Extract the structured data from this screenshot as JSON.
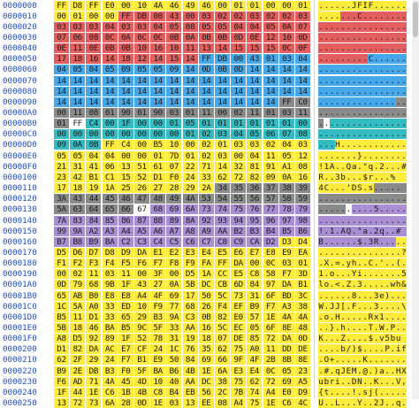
{
  "viewer": {
    "colors": {
      "Y": "#ffeb3b",
      "R": "#e35e5e",
      "B": "#46a8e8",
      "G": "#8a8a8a",
      "C": "#35bcc3",
      "P": "#a98ed4",
      "W": "#ffffff",
      "D": "#707070",
      "K": "#2a2a2a"
    },
    "rows": [
      {
        "offset": "0000000",
        "hex": "FF D8 FF E0 00 10 4A 46 49 46 00 01 01 00 00 01",
        "ascii": "......JFIF......",
        "hexFill": "YYYYYYYYYYYYYYYY",
        "ascFill": "YYYYYYYYYYYYYYYY"
      },
      {
        "offset": "0000010",
        "hex": "00 01 00 00 FF DB 00 43 00 03 02 02 03 02 02 03",
        "ascii": ".......C........",
        "hexFill": "YYYYRRRRRRRRRRRR",
        "ascFill": "YYYYRRRRRRRRRRRR"
      },
      {
        "offset": "0000020",
        "hex": "03 03 03 04 03 03 04 05 08 05 05 04 04 05 0A 07",
        "ascii": "................",
        "hexFill": "RRRRRRRRRRRRRRRR",
        "ascFill": "RRRRRRRRRRRRRRRR"
      },
      {
        "offset": "0000030",
        "hex": "07 06 08 0C 0A 0C 0C 0B 0A 0B 0B 0D 0E 12 10 0D",
        "ascii": "................",
        "hexFill": "RRRRRRRRRRRRRRRR",
        "ascFill": "RRRRRRRRRRRRRRRR"
      },
      {
        "offset": "0000040",
        "hex": "0E 11 0E 0B 0B 10 16 10 11 13 14 15 15 15 0C 0F",
        "ascii": "................",
        "hexFill": "RRRRRRRRRRRRRRRR",
        "ascFill": "RRRRRRRRRRRRRRRR"
      },
      {
        "offset": "0000050",
        "hex": "17 18 16 14 18 12 14 15 14 FF DB 00 43 01 03 04",
        "ascii": ".........C......",
        "hexFill": "RRRRRRRRRBBBBBBB",
        "ascFill": "RRRRRRRRRBBBBBBB"
      },
      {
        "offset": "0000060",
        "hex": "04 05 04 05 09 05 05 09 14 0D 0B 0D 14 14 14 14",
        "ascii": "................",
        "hexFill": "BBBBBBBBBBBBBBBB",
        "ascFill": "BBBBBBBBBBBBBBBB"
      },
      {
        "offset": "0000070",
        "hex": "14 14 14 14 14 14 14 14 14 14 14 14 14 14 14 14",
        "ascii": "................",
        "hexFill": "BBBBBBBBBBBBBBBB",
        "ascFill": "BBBBBBBBBBBBBBBB"
      },
      {
        "offset": "0000080",
        "hex": "14 14 14 14 14 14 14 14 14 14 14 14 14 14 14 14",
        "ascii": "................",
        "hexFill": "BBBBBBBBBBBBBBBB",
        "ascFill": "BBBBBBBBBBBBBBBB"
      },
      {
        "offset": "0000090",
        "hex": "14 14 14 14 14 14 14 14 14 14 14 14 14 14 FF C0",
        "ascii": "................",
        "hexFill": "BBBBBBBBBBBBBBGG",
        "ascFill": "BBBBBBBBBBBBBBGG"
      },
      {
        "offset": "00000A0",
        "hex": "00 11 08 01 90 01 90 03 01 11 00 02 11 01 03 11",
        "ascii": "................",
        "hexFill": "GGGGGGGGGGGGGGGG",
        "ascFill": "GGGGGGGGGGGGGGGG"
      },
      {
        "offset": "00000B0",
        "hex": "01 FF C4 00 1F 00 00 01 05 01 01 01 01 01 01 00",
        "ascii": "................",
        "hexFill": "GWCCCCCCCCCCCCCC",
        "ascFill": "GWCCCCCCCCCCCCCC"
      },
      {
        "offset": "00000C0",
        "hex": "00 00 00 00 00 00 00 00 01 02 03 04 05 06 07 08",
        "ascii": "................",
        "hexFill": "CCCCCCCCCCCCCCCC",
        "ascFill": "CCCCCCCCCCCCCCCC"
      },
      {
        "offset": "00000D0",
        "hex": "09 0A 0B FF C4 00 B5 10 00 02 01 03 03 02 04 03",
        "ascii": "...H............",
        "hexFill": "CCCYYYYYYYYYYYYY",
        "ascFill": "CCCYYYYYYYYYYYYY"
      },
      {
        "offset": "00000E0",
        "hex": "05 05 04 04 00 00 01 7D 01 02 03 00 04 11 05 12",
        "ascii": ".......}........",
        "hexFill": "YYYYYYYYYYYYYYYY",
        "ascFill": "YYYYYYYYYYYYYYYY"
      },
      {
        "offset": "00000F0",
        "hex": "21 31 41 06 13 51 61 07 22 71 14 32 81 91 A1 08",
        "ascii": "!1A..Qa.\"q.2...#B.",
        "hexFill": "YYYYYYYYYYYYYYYY",
        "ascFill": "YYYYYYYYYYYYYYYY"
      },
      {
        "offset": "0000100",
        "hex": "23 42 B1 C1 15 52 D1 F0 24 33 62 72 82 09 0A 16",
        "ascii": "R..3b...$r...%",
        "hexFill": "YYYYYYYYYYYYYYYY",
        "ascFill": "YYYYYYYYYYYYYYYY"
      },
      {
        "offset": "0000110",
        "hex": "17 18 19 1A 25 26 27 28 29 2A 34 35 36 37 38 39",
        "ascii": "4C...'DS.s.....",
        "hexFill": "YYYYYYYYYYGGGGGG",
        "ascFill": "YYYYYYYYYYGGGGGG"
      },
      {
        "offset": "0000120",
        "hex": "3A 43 44 45 46 47 48 49 4A 53 54 55 56 57 58 59",
        "ascii": "................",
        "hexFill": "GGGGGGGGGGGGGGGG",
        "ascFill": "GGGGGGGGGGGGGGGG"
      },
      {
        "offset": "0000130",
        "hex": "5A 63 64 65 66 67 68 69 6A 73 74 75 76 77 78 79",
        "ascii": "..........5.....",
        "hexFill": "GGGGGWPPPPPPPPPP",
        "ascFill": "GGGGGWPPPPPPPPPP"
      },
      {
        "offset": "0000140",
        "hex": "7A 83 84 85 86 87 88 89 8A 92 93 94 95 96 97 98",
        "ascii": "................",
        "hexFill": "PPPPPPPPPPPPPPPP",
        "ascFill": "PPPPPPPPPPPPPPPP"
      },
      {
        "offset": "0000150",
        "hex": "99 9A A2 A3 A4 A5 A6 A7 A8 A9 AA B2 B3 B4 B5 B6",
        "ascii": "!.1.AQ.\"a.2q..#",
        "hexFill": "PPPPPPPPPPPPPPPP",
        "ascFill": "PPPPPPPPPPPPPPPP"
      },
      {
        "offset": "0000160",
        "hex": "B7 B8 B9 BA C2 C3 C4 C5 C6 C7 C8 C9 CA D2 D3 D4",
        "ascii": "B......$.3R.....",
        "hexFill": "PPPPPPPPPPPPPPYY",
        "ascFill": "PPPPPPPPPPPPPPYY"
      },
      {
        "offset": "0000170",
        "hex": "D5 D6 D7 D8 D9 DA E1 E2 E3 E4 E5 E6 E7 E8 E9 EA",
        "ascii": "...............?",
        "hexFill": "YYYYYYYYYYYYYYYY",
        "ascFill": "YYYYYYYYYYYYYYYY"
      },
      {
        "offset": "0000180",
        "hex": "F1 F2 F3 F4 F5 F6 F7 F8 F9 FA FF DA 00 0C 03 01",
        "ascii": ".X.=.yh..C.'..(.",
        "hexFill": "YYYYYYYYYYYYYYYY",
        "ascFill": "YYYYYYYYYYYYYYYY"
      },
      {
        "offset": "0000190",
        "hex": "00 02 11 03 11 00 3F 00 D5 1A CC E5 C8 58 F7 3D",
        "ascii": "1.o...Yi.......5",
        "hexFill": "YYYYYYYYYYYYYYYY",
        "ascFill": "YYYYYYYYYYYYYYYY"
      },
      {
        "offset": "00001A0",
        "hex": "0D 79 68 9B 1F 43 27 0A 5B DC CB 6D 84 97 DA B1",
        "ascii": "lo.<.Z.3.....wh&.",
        "hexFill": "YYYYYYYYYYYYYYYY",
        "ascFill": "YYYYYYYYYYYYYYYY"
      },
      {
        "offset": "00001B0",
        "hex": "65 AB B0 E8 E8 A4 4F 69 17 50 5C 73 31 6F BD 3C",
        "ascii": "......8...3e)....",
        "hexFill": "YYYYYYYYYYYYYYYY",
        "ascFill": "YYYYYYYYYYYYYYYY"
      },
      {
        "offset": "00001C0",
        "hex": "1C 5A A0 33 ED 10 F9 77 68 26 F4 EF B9 F7 A3 38",
        "ascii": "W.JJ[.F...3....\\.",
        "hexFill": "YYYYYYYYYYYYYYYY",
        "ascFill": "YYYYYYYYYYYYYYYY"
      },
      {
        "offset": "00001D0",
        "hex": "B5 11 D1 33 65 29 B3 9A C3 0B 82 E0 57 1E 4A 4A",
        "ascii": ".o.H.....Rx1....",
        "hexFill": "YYYYYYYYYYYYYYYY",
        "ascFill": "YYYYYYYYYYYYYYYY"
      },
      {
        "offset": "00001E0",
        "hex": "5B 18 46 BA B5 9C 5F 33 AA 16 5C EC 05 6F 8E 48",
        "ascii": "..}.h....T.W.P..",
        "hexFill": "YYYYYYYYYYYYYYYY",
        "ascFill": "YYYYYYYYYYYYYYYY"
      },
      {
        "offset": "00001F0",
        "hex": "A8 D5 92 89 1F 52 78 31 19 18 07 DE 85 72 DA 0D",
        "ascii": "K...Z....$.v5bu",
        "hexFill": "YYYYYYYYYYYYYYYY",
        "ascFill": "YYYYYYYYYYYYYYYY"
      },
      {
        "offset": "0000200",
        "hex": "D1 82 DA AC E7 CF 24 1C 76 35 62 75 A0 11 DD DE",
        "ascii": "....b/)$....P.if",
        "hexFill": "YYYYYYYYYYYYYYYY",
        "ascFill": "YYYYYYYYYYYYYYYY"
      },
      {
        "offset": "0000210",
        "hex": "62 2F 29 24 F7 B1 E9 50 84 69 66 9F 4F 2B 8B 8E",
        "ascii": ".O+.....K.......",
        "hexFill": "YYYYYYYYYYYYYYYY",
        "ascFill": "YYYYYYYYYYYYYYYY"
      },
      {
        "offset": "0000220",
        "hex": "B9 2E DB B3 F0 5F BA B6 4B 1E 6A E3 E4 0C 05 23",
        "ascii": ".#.qJEM.@.)a..HX",
        "hexFill": "YYYYYYYYYYYYYYYY",
        "ascFill": "YYYYYYYYYYYYYYYY"
      },
      {
        "offset": "0000230",
        "hex": "F6 AD 71 4A 45 4D 10 40 AA DC 38 75 62 72 69 A5",
        "ascii": "ubri..DN..K...V,",
        "hexFill": "YYYYYYYYYYYYYYYY",
        "ascFill": "YYYYYYYYYYYYYYYY"
      },
      {
        "offset": "0000240",
        "hex": "1F 44 1E C6 1B 4B C8 B4 EB 56 2C 7B 74 A4 E0 D9",
        "ascii": "{t....!.sj(.....",
        "hexFill": "YYYYYYYYYYYYYYYY",
        "ascFill": "YYYYYYYYYYYYYYYY"
      },
      {
        "offset": "0000250",
        "hex": "13 72 73 6A 28 0D 1E 03 13 EE 08 A4 75 1E C6 4C",
        "ascii": "U..L...Y..2J..q..",
        "hexFill": "YYYYYYYYYYYYYYYY",
        "ascFill": "YYYYYYYYYYYYYYYY"
      }
    ]
  }
}
